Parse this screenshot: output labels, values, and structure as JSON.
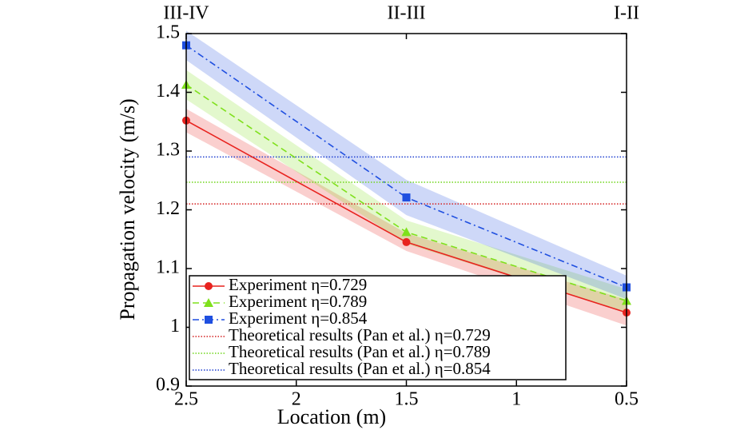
{
  "chart_data": {
    "type": "line",
    "xlabel": "Location (m)",
    "ylabel": "Propagation velocity (m/s)",
    "x": [
      2.5,
      1.5,
      0.5
    ],
    "xlim": [
      2.5,
      0.5
    ],
    "xticks": [
      2.5,
      2.0,
      1.5,
      1.0,
      0.5
    ],
    "ylim": [
      0.9,
      1.5
    ],
    "yticks": [
      0.9,
      1.0,
      1.1,
      1.2,
      1.3,
      1.4,
      1.5
    ],
    "x2ticks": [
      {
        "value": 2.5,
        "label": "III-IV"
      },
      {
        "value": 1.5,
        "label": "II-III"
      },
      {
        "value": 0.5,
        "label": "I-II"
      }
    ],
    "series": [
      {
        "name": "Experiment η=0.729",
        "color": "#e8231f",
        "values": [
          1.352,
          1.145,
          1.025
        ],
        "error": [
          0.02,
          0.015,
          0.022
        ],
        "dash": "solid",
        "marker": "circle"
      },
      {
        "name": "Experiment η=0.789",
        "color": "#7fe01c",
        "values": [
          1.413,
          1.162,
          1.045
        ],
        "error": [
          0.025,
          0.02,
          0.02
        ],
        "dash": "dashed",
        "marker": "triangle"
      },
      {
        "name": "Experiment η=0.854",
        "color": "#1f4fe0",
        "values": [
          1.48,
          1.221,
          1.068
        ],
        "error": [
          0.025,
          0.03,
          0.02
        ],
        "dash": "dashdot",
        "marker": "square"
      }
    ],
    "reference_lines": [
      {
        "name": "Theoretical results (Pan et al.) η=0.729",
        "color": "#d42020",
        "value": 1.21
      },
      {
        "name": "Theoretical results (Pan et al.) η=0.789",
        "color": "#6fd61a",
        "value": 1.247
      },
      {
        "name": "Theoretical results (Pan et al.) η=0.854",
        "color": "#1f3fd0",
        "value": 1.29
      }
    ],
    "legend": "lower left"
  }
}
